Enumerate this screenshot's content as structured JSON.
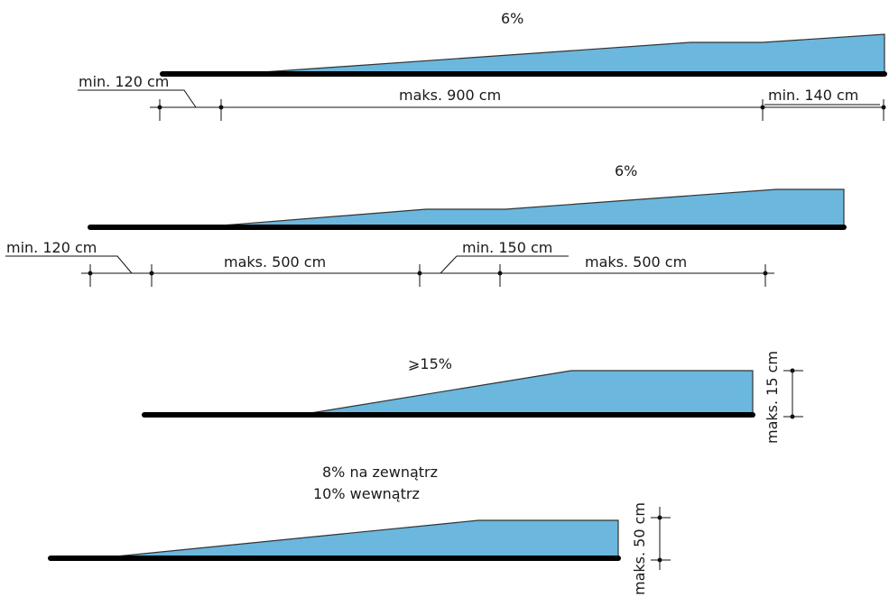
{
  "ramp1": {
    "slope": "6%",
    "landing_start": "min. 120 cm",
    "run": "maks. 900 cm",
    "landing_end": "min. 140 cm"
  },
  "ramp2": {
    "slope": "6%",
    "landing_start": "min. 120 cm",
    "run_1": "maks. 500 cm",
    "landing_mid": "min. 150 cm",
    "run_2": "maks. 500 cm"
  },
  "ramp3": {
    "slope": "⩾15%",
    "height": "maks. 15 cm"
  },
  "ramp4": {
    "slope_outside": "8% na zewnątrz",
    "slope_inside": "10% wewnątrz",
    "height": "maks. 50 cm"
  },
  "colors": {
    "ramp_fill": "#6bb7dd",
    "base": "#000000"
  }
}
